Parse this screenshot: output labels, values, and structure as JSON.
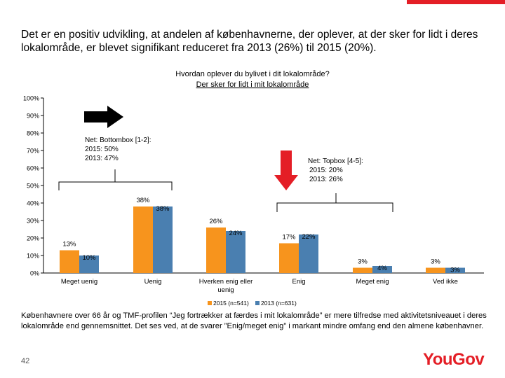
{
  "headline": "Det er en positiv udvikling, at andelen af københavnerne, der oplever, at der sker for lidt i deres lokalområde, er blevet signifikant reduceret fra 2013 (26%) til 2015 (20%).",
  "footnote": "Københavnere over 66 år og TMF-profilen “Jeg fortrækker at færdes i mit lokalområde” er mere tilfredse med aktivitetsniveauet i deres lokalområde end gennemsnittet. Det ses ved, at de svarer ”Enig/meget enig” i markant mindre omfang end den almene københavner.",
  "page_number": "42",
  "logo_text": "YouGov",
  "colors": {
    "series_2015": "#f7941d",
    "series_2013": "#4a7fb0",
    "accent": "#e41e26",
    "arrow_right": "#000000",
    "arrow_down": "#e41e26"
  },
  "annotations": {
    "bottombox": {
      "title": "Net: Bottombox [1-2]:",
      "line1": "2015: 50%",
      "line2": "2013: 47%"
    },
    "topbox": {
      "title": "Net: Topbox [4-5]:",
      "line1": "2015: 20%",
      "line2": "2013: 26%"
    }
  },
  "chart_data": {
    "type": "bar",
    "title": "Hvordan oplever du bylivet i dit lokalområde?",
    "subtitle": "Der sker for lidt i mit lokalområde",
    "categories": [
      "Meget uenig",
      "Uenig",
      "Hverken enig eller uenig",
      "Enig",
      "Meget enig",
      "Ved ikke"
    ],
    "series": [
      {
        "name": "2015 (n=541)",
        "values": [
          13,
          38,
          26,
          17,
          3,
          3
        ],
        "labels": [
          "13%",
          "38%",
          "26%",
          "17%",
          "3%",
          "3%"
        ]
      },
      {
        "name": "2013 (n=631)",
        "values": [
          10,
          38,
          24,
          22,
          4,
          3
        ],
        "labels": [
          "10%",
          "38%",
          "24%",
          "22%",
          "4%",
          "3%"
        ]
      }
    ],
    "ylim": [
      0,
      100
    ],
    "yticks": [
      "0%",
      "10%",
      "20%",
      "30%",
      "40%",
      "50%",
      "60%",
      "70%",
      "80%",
      "90%",
      "100%"
    ],
    "grid": false,
    "legend": "bottom"
  }
}
